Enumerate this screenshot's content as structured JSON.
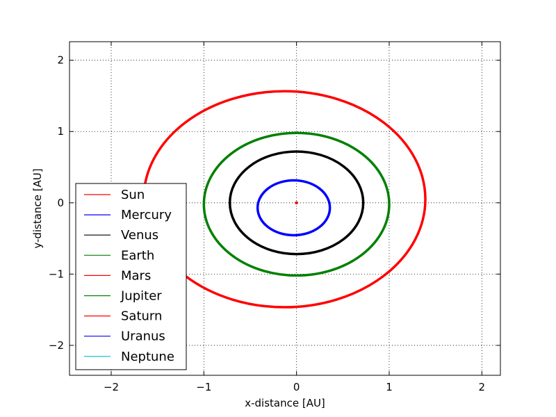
{
  "chart_data": {
    "type": "line",
    "title": "",
    "xlabel": "x-distance [AU]",
    "ylabel": "y-distance [AU]",
    "xlim": [
      -2.45,
      2.2
    ],
    "ylim": [
      -2.42,
      2.26
    ],
    "xticks": [
      -2,
      -1,
      0,
      1,
      2
    ],
    "yticks": [
      -2,
      -1,
      0,
      1,
      2
    ],
    "xtick_labels": [
      "−2",
      "−1",
      "0",
      "1",
      "2"
    ],
    "ytick_labels": [
      "−2",
      "−1",
      "0",
      "1",
      "2"
    ],
    "grid": true,
    "legend_position": "lower-left",
    "series": [
      {
        "name": "Sun",
        "color": "#ff0000",
        "cx": 0.0,
        "cy": 0.0,
        "rx": 0.005,
        "ry": 0.005
      },
      {
        "name": "Mercury",
        "color": "#0000ff",
        "cx": -0.03,
        "cy": -0.07,
        "rx": 0.39,
        "ry": 0.385
      },
      {
        "name": "Venus",
        "color": "#000000",
        "cx": 0.0,
        "cy": 0.0,
        "rx": 0.72,
        "ry": 0.72
      },
      {
        "name": "Earth",
        "color": "#008000",
        "cx": 0.0,
        "cy": -0.02,
        "rx": 1.0,
        "ry": 1.0
      },
      {
        "name": "Mars",
        "color": "#ff0000",
        "cx": -0.13,
        "cy": 0.05,
        "rx": 1.52,
        "ry": 1.515
      },
      {
        "name": "Jupiter",
        "color": "#008000"
      },
      {
        "name": "Saturn",
        "color": "#ff0000"
      },
      {
        "name": "Uranus",
        "color": "#0000ff"
      },
      {
        "name": "Neptune",
        "color": "#00bfbf"
      }
    ]
  }
}
